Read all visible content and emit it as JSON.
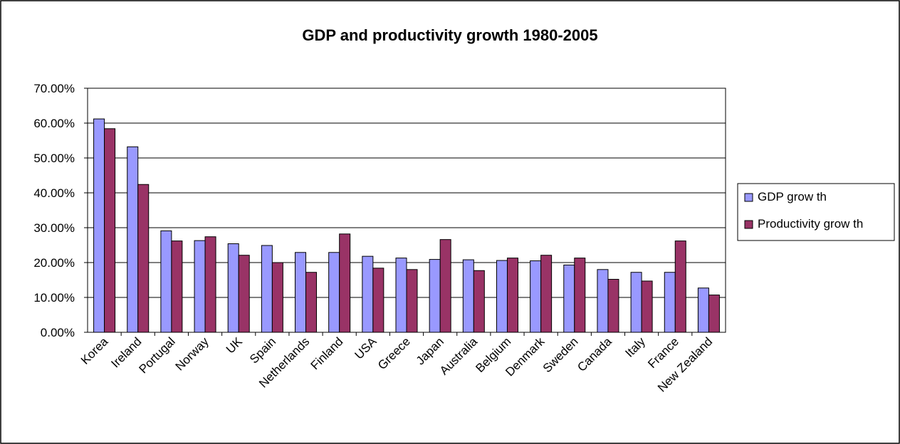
{
  "chart_data": {
    "type": "bar",
    "title": "GDP and productivity growth 1980-2005",
    "xlabel": "",
    "ylabel": "",
    "ylim": [
      0,
      0.7
    ],
    "y_tick_step": 0.1,
    "y_tick_labels": [
      "0.00%",
      "10.00%",
      "20.00%",
      "30.00%",
      "40.00%",
      "50.00%",
      "60.00%",
      "70.00%"
    ],
    "grid": true,
    "legend_position": "right",
    "categories": [
      "Korea",
      "Ireland",
      "Portugal",
      "Norway",
      "UK",
      "Spain",
      "Netherlands",
      "Finland",
      "USA",
      "Greece",
      "Japan",
      "Australia",
      "Belgium",
      "Denmark",
      "Sweden",
      "Canada",
      "Italy",
      "France",
      "New Zealand"
    ],
    "series": [
      {
        "name": "GDP grow th",
        "color": "#9999FF",
        "values": [
          0.612,
          0.532,
          0.291,
          0.263,
          0.254,
          0.249,
          0.229,
          0.229,
          0.218,
          0.213,
          0.209,
          0.208,
          0.206,
          0.205,
          0.193,
          0.18,
          0.172,
          0.172,
          0.127
        ]
      },
      {
        "name": "Productivity grow th",
        "color": "#993366",
        "values": [
          0.584,
          0.424,
          0.262,
          0.274,
          0.221,
          0.2,
          0.172,
          0.282,
          0.184,
          0.18,
          0.266,
          0.177,
          0.213,
          0.221,
          0.213,
          0.152,
          0.147,
          0.262,
          0.107
        ]
      }
    ]
  }
}
